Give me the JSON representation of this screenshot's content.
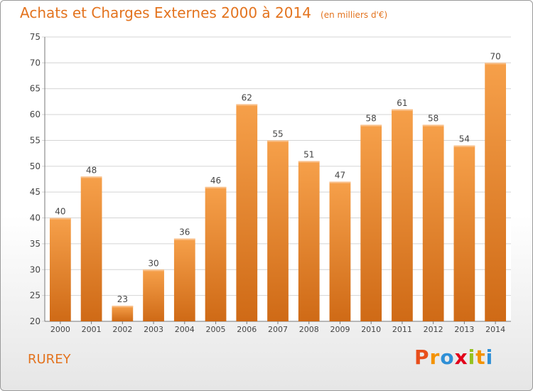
{
  "chart_data": {
    "type": "bar",
    "title": "Achats et Charges Externes 2000 à 2014",
    "subtitle": "(en milliers d'€)",
    "categories": [
      "2000",
      "2001",
      "2002",
      "2003",
      "2004",
      "2005",
      "2006",
      "2007",
      "2008",
      "2009",
      "2010",
      "2011",
      "2012",
      "2013",
      "2014"
    ],
    "values": [
      40,
      48,
      23,
      30,
      36,
      46,
      62,
      55,
      51,
      47,
      58,
      61,
      58,
      54,
      70
    ],
    "ylim": [
      20,
      75
    ],
    "yticks": [
      "20",
      "25",
      "30",
      "35",
      "40",
      "45",
      "50",
      "55",
      "60",
      "65",
      "70",
      "75"
    ],
    "grid": true,
    "bar_color": "#f0922e",
    "xlabel": "",
    "ylabel": ""
  },
  "place_name": "RUREY",
  "brand": {
    "letters": [
      "P",
      "r",
      "o",
      "x",
      "i",
      "t",
      "i"
    ],
    "colors": [
      "#e84e1b",
      "#f39200",
      "#2e8fd6",
      "#e2001a",
      "#95c11f",
      "#f39200",
      "#2e8fd6"
    ]
  }
}
